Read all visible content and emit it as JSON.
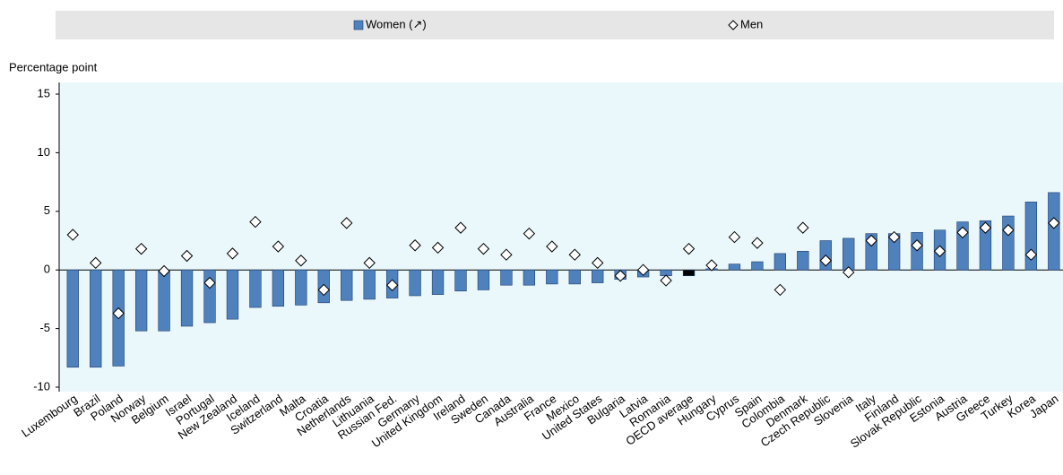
{
  "chart_data": {
    "type": "bar",
    "y_axis_label": "Percentage point",
    "categories": [
      "Luxembourg",
      "Brazil",
      "Poland",
      "Norway",
      "Belgium",
      "Israel",
      "Portugal",
      "New Zealand",
      "Iceland",
      "Switzerland",
      "Malta",
      "Croatia",
      "Netherlands",
      "Lithuania",
      "Russian Fed.",
      "Germany",
      "United Kingdom",
      "Ireland",
      "Sweden",
      "Canada",
      "Australia",
      "France",
      "Mexico",
      "United States",
      "Bulgaria",
      "Latvia",
      "Romania",
      "OECD average",
      "Hungary",
      "Cyprus",
      "Spain",
      "Colombia",
      "Denmark",
      "Czech Republic",
      "Slovenia",
      "Italy",
      "Finland",
      "Slovak Republic",
      "Estonia",
      "Austria",
      "Greece",
      "Turkey",
      "Korea",
      "Japan"
    ],
    "series": [
      {
        "name": "Women (↗)",
        "mark": "bar",
        "color": "#4f81bd",
        "values": [
          -8.3,
          -8.3,
          -8.2,
          -5.2,
          -5.2,
          -4.8,
          -4.5,
          -4.2,
          -3.2,
          -3.1,
          -3.0,
          -2.8,
          -2.6,
          -2.5,
          -2.4,
          -2.2,
          -2.1,
          -1.8,
          -1.7,
          -1.3,
          -1.3,
          -1.2,
          -1.2,
          -1.1,
          -0.8,
          -0.6,
          -0.5,
          -0.5,
          0.1,
          0.5,
          0.7,
          1.4,
          1.6,
          2.5,
          2.7,
          3.1,
          3.1,
          3.2,
          3.4,
          4.1,
          4.2,
          4.6,
          5.8,
          6.6
        ]
      },
      {
        "name": "Men",
        "mark": "diamond",
        "color": "#ffffff",
        "values": [
          3.0,
          0.6,
          -3.7,
          1.8,
          -0.1,
          1.2,
          -1.1,
          1.4,
          4.1,
          2.0,
          0.8,
          -1.7,
          4.0,
          0.6,
          -1.3,
          2.1,
          1.9,
          3.6,
          1.8,
          1.3,
          3.1,
          2.0,
          1.3,
          0.6,
          -0.5,
          0.0,
          -0.9,
          1.8,
          0.4,
          2.8,
          2.3,
          -1.7,
          3.6,
          0.8,
          -0.2,
          2.5,
          2.8,
          2.1,
          1.6,
          3.2,
          3.6,
          3.4,
          1.3,
          4.0
        ]
      }
    ],
    "highlight": {
      "index": 27,
      "color": "#000000"
    },
    "ylim": [
      -10,
      15
    ],
    "yticks": [
      -10,
      -5,
      0,
      5,
      10,
      15
    ],
    "plot_background": "#eaf8fb"
  }
}
